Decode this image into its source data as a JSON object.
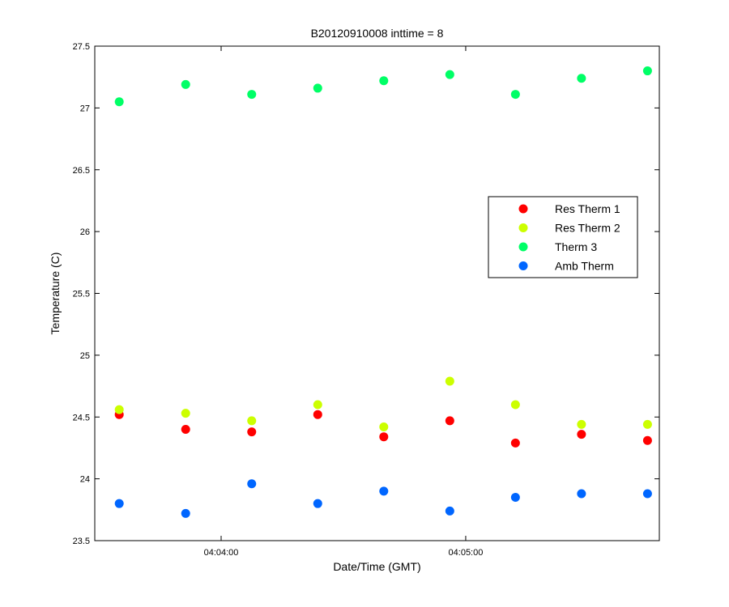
{
  "chart_data": {
    "type": "scatter",
    "title": "B20120910008 inttime = 8",
    "xlabel": "Date/Time (GMT)",
    "ylabel": "Temperature (C)",
    "x_unit": "seconds after 04:03:00 GMT",
    "xlim": [
      29.0,
      167.5
    ],
    "ylim": [
      23.5,
      27.5
    ],
    "x_ticks": [
      {
        "value": 60,
        "label": "04:04:00"
      },
      {
        "value": 120,
        "label": "04:05:00"
      }
    ],
    "y_ticks": [
      {
        "value": 23.5,
        "label": "23.5"
      },
      {
        "value": 24.0,
        "label": "24"
      },
      {
        "value": 24.5,
        "label": "24.5"
      },
      {
        "value": 25.0,
        "label": "25"
      },
      {
        "value": 25.5,
        "label": "25.5"
      },
      {
        "value": 26.0,
        "label": "26"
      },
      {
        "value": 26.5,
        "label": "26.5"
      },
      {
        "value": 27.0,
        "label": "27"
      },
      {
        "value": 27.5,
        "label": "27.5"
      }
    ],
    "x": [
      35.0,
      51.3,
      67.5,
      83.7,
      99.9,
      116.1,
      132.2,
      148.4,
      164.6
    ],
    "series": [
      {
        "name": "Res Therm 1",
        "color": "#ff0000",
        "values": [
          24.52,
          24.4,
          24.38,
          24.52,
          24.34,
          24.47,
          24.29,
          24.36,
          24.31
        ]
      },
      {
        "name": "Res Therm 2",
        "color": "#ccff00",
        "values": [
          24.56,
          24.53,
          24.47,
          24.6,
          24.42,
          24.79,
          24.6,
          24.44,
          24.44
        ]
      },
      {
        "name": "Therm 3",
        "color": "#00ff66",
        "values": [
          27.05,
          27.19,
          27.11,
          27.16,
          27.22,
          27.27,
          27.11,
          27.24,
          27.3
        ]
      },
      {
        "name": "Amb Therm",
        "color": "#0066ff",
        "values": [
          23.8,
          23.72,
          23.96,
          23.8,
          23.9,
          23.74,
          23.85,
          23.88,
          23.88
        ]
      }
    ],
    "grid": false,
    "legend_position": "center-right"
  }
}
